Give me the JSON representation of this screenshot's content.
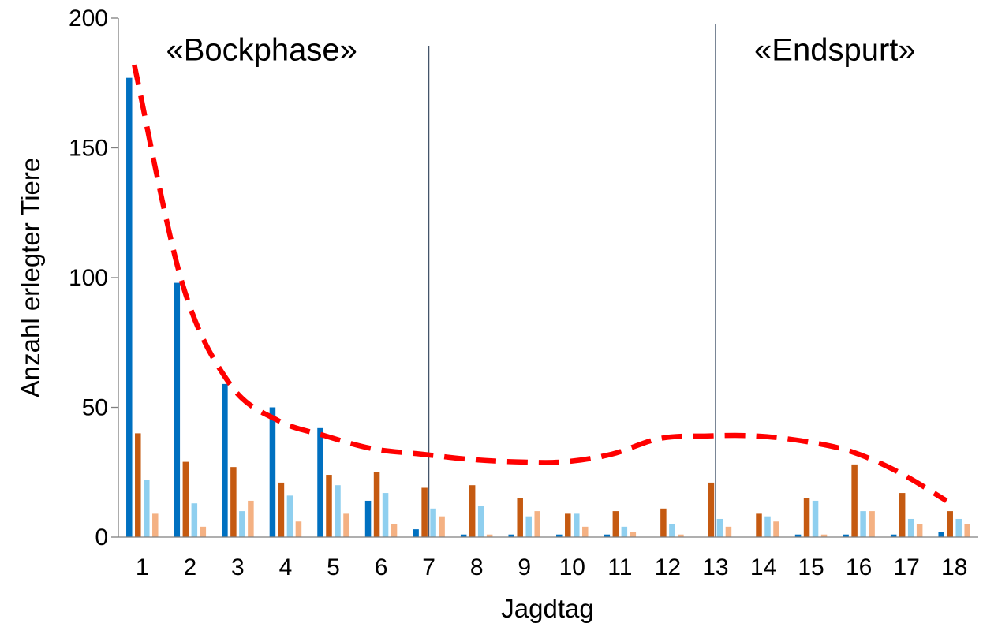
{
  "chart_data": {
    "type": "bar",
    "xlabel": "Jagdtag",
    "ylabel": "Anzahl erlegter Tiere",
    "ylim": [
      0,
      200
    ],
    "yticks": [
      0,
      50,
      100,
      150,
      200
    ],
    "categories": [
      "1",
      "2",
      "3",
      "4",
      "5",
      "6",
      "7",
      "8",
      "9",
      "10",
      "11",
      "12",
      "13",
      "14",
      "15",
      "16",
      "17",
      "18"
    ],
    "grid": false,
    "legend": "none",
    "series": [
      {
        "color": "#0070C0",
        "values": [
          177,
          98,
          59,
          50,
          42,
          14,
          3,
          1,
          1,
          1,
          1,
          0,
          0,
          0,
          1,
          1,
          1,
          2
        ]
      },
      {
        "color": "#C55A11",
        "values": [
          40,
          29,
          27,
          21,
          24,
          25,
          19,
          20,
          15,
          9,
          10,
          11,
          21,
          9,
          15,
          28,
          17,
          10
        ]
      },
      {
        "color": "#8FCFEF",
        "values": [
          22,
          13,
          10,
          16,
          20,
          17,
          11,
          12,
          8,
          9,
          4,
          5,
          7,
          8,
          14,
          10,
          7,
          7
        ]
      },
      {
        "color": "#F4B183",
        "values": [
          9,
          4,
          14,
          6,
          9,
          5,
          8,
          1,
          10,
          4,
          2,
          1,
          4,
          6,
          1,
          10,
          5,
          5
        ]
      }
    ],
    "trendline": {
      "style": "dashed",
      "color": "#FF0000",
      "x": [
        1,
        2,
        3,
        4,
        5,
        6,
        7,
        8,
        9,
        10,
        11,
        12,
        13,
        14,
        15,
        16,
        17,
        18
      ],
      "values": [
        182,
        98,
        59,
        45,
        39,
        34,
        32,
        30,
        29,
        29,
        32,
        38,
        39,
        39,
        37,
        33,
        25,
        14
      ]
    },
    "separators": [
      6.5,
      12.5
    ],
    "annotations": [
      {
        "text": "«Bockphase»",
        "x": 3.5,
        "y": 188
      },
      {
        "text": "«Endspurt»",
        "x": 15.5,
        "y": 188
      }
    ]
  }
}
